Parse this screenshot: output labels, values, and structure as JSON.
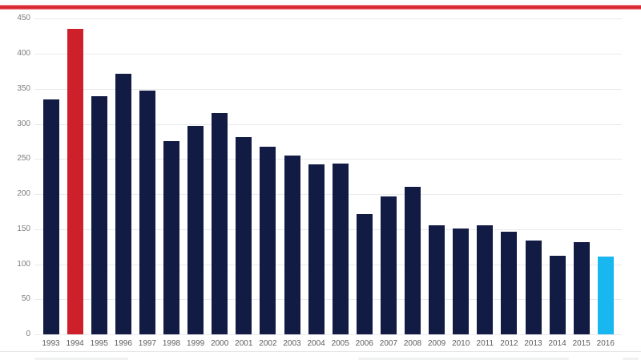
{
  "chart_data": {
    "type": "bar",
    "title": "",
    "xlabel": "",
    "ylabel": "",
    "categories": [
      "1993",
      "1994",
      "1995",
      "1996",
      "1997",
      "1998",
      "1999",
      "2000",
      "2001",
      "2002",
      "2003",
      "2004",
      "2005",
      "2006",
      "2007",
      "2008",
      "2009",
      "2010",
      "2011",
      "2012",
      "2013",
      "2014",
      "2015",
      "2016"
    ],
    "values": [
      335,
      436,
      339,
      372,
      347,
      275,
      297,
      315,
      281,
      268,
      255,
      242,
      243,
      172,
      197,
      210,
      156,
      151,
      155,
      146,
      134,
      112,
      131,
      111
    ],
    "ylim": [
      0,
      450
    ],
    "y_ticks": [
      0,
      50,
      100,
      150,
      200,
      250,
      300,
      350,
      400,
      450
    ],
    "grid": true,
    "legend": "none",
    "bar_colors": {
      "default": "#111b44",
      "highlights": {
        "1994": "#ce202a",
        "2016": "#18b7f0"
      }
    }
  },
  "decorations": {
    "top_accent_color": "#d8262f",
    "top_accent_halo": "#f2a3a6",
    "gridline_color": "#e8eaeb",
    "y_label_color": "#7d7d7d",
    "x_label_color": "#5c5c5c",
    "bottom_divider_color": "#e2e4e5",
    "smudge_color": "#eff1f2"
  }
}
